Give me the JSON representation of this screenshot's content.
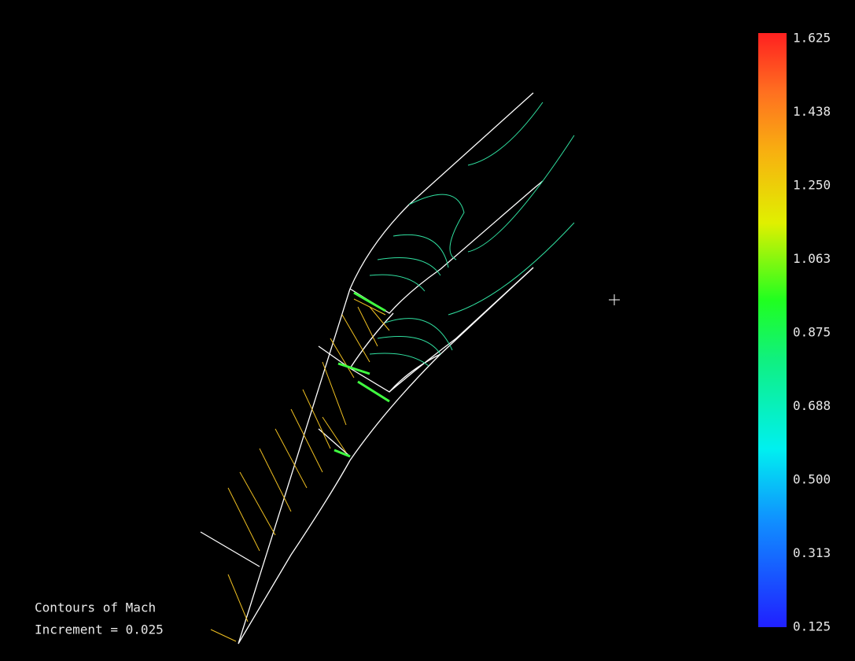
{
  "caption": {
    "title": "Contours of Mach",
    "increment": "Increment = 0.025"
  },
  "colorbar": {
    "range": [
      0.125,
      1.625
    ],
    "ticks": [
      {
        "value": 1.625,
        "label": "1.625"
      },
      {
        "value": 1.438,
        "label": "1.438"
      },
      {
        "value": 1.25,
        "label": "1.250"
      },
      {
        "value": 1.063,
        "label": "1.063"
      },
      {
        "value": 0.875,
        "label": "0.875"
      },
      {
        "value": 0.688,
        "label": "0.688"
      },
      {
        "value": 0.5,
        "label": "0.500"
      },
      {
        "value": 0.313,
        "label": "0.313"
      },
      {
        "value": 0.125,
        "label": "0.125"
      }
    ]
  }
}
